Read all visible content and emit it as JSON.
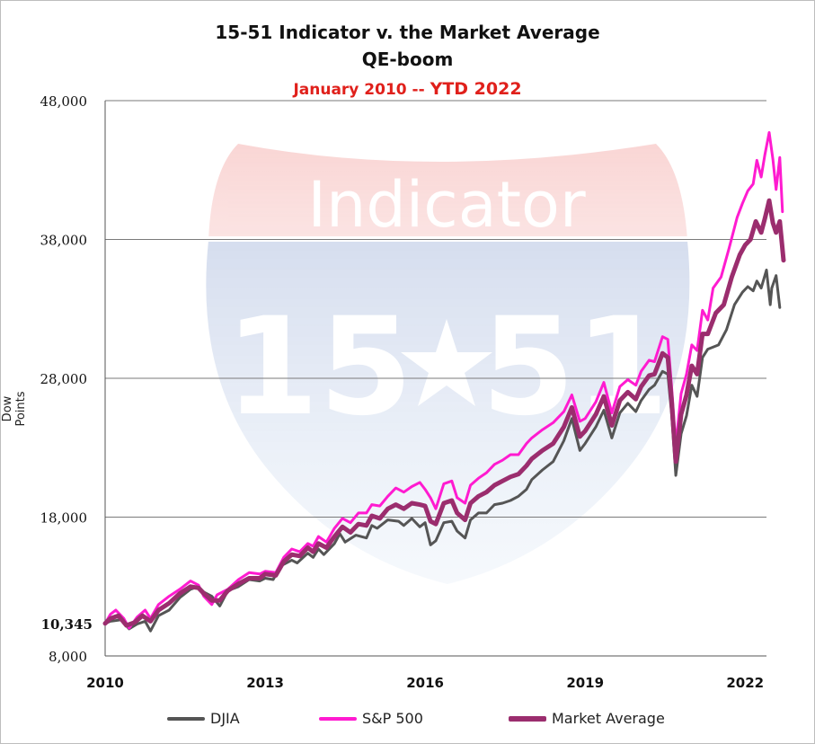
{
  "title": "15-51 Indicator v. the Market Average",
  "subtitle": "QE-boom",
  "period": "January 2010 --",
  "period_ytd": "YTD 2022",
  "watermark": {
    "text": "Indicator",
    "number_left": "15",
    "number_right": "51",
    "colors": {
      "top": "#e8534e",
      "bottom": "#3b5fb0"
    }
  },
  "chart_data": {
    "type": "line",
    "ylabel": "Dow Points",
    "ylim": [
      8000,
      48000
    ],
    "yticks": [
      8000,
      18000,
      28000,
      38000,
      48000
    ],
    "ytick_labels": [
      "8,000",
      "18,000",
      "28,000",
      "38,000",
      "48,000"
    ],
    "start_marker": {
      "value": 10345,
      "label": "10,345"
    },
    "xlim": [
      2010,
      2022.4
    ],
    "xticks": [
      2010,
      2013,
      2016,
      2019,
      2022
    ],
    "xtick_labels": [
      "2010",
      "2013",
      "2016",
      "2019",
      "2022"
    ],
    "grid": true,
    "legend_position": "bottom",
    "series": [
      {
        "name": "DJIA",
        "color": "#555555",
        "points": [
          [
            2010,
            10345
          ],
          [
            2010.1,
            10500
          ],
          [
            2010.3,
            10600
          ],
          [
            2010.45,
            9950
          ],
          [
            2010.6,
            10300
          ],
          [
            2010.75,
            10500
          ],
          [
            2010.85,
            9800
          ],
          [
            2011.0,
            10900
          ],
          [
            2011.2,
            11300
          ],
          [
            2011.4,
            12200
          ],
          [
            2011.6,
            12800
          ],
          [
            2011.75,
            13000
          ],
          [
            2011.85,
            12600
          ],
          [
            2012.0,
            12300
          ],
          [
            2012.15,
            11600
          ],
          [
            2012.3,
            12700
          ],
          [
            2012.5,
            13000
          ],
          [
            2012.7,
            13500
          ],
          [
            2012.9,
            13400
          ],
          [
            2013.0,
            13600
          ],
          [
            2013.15,
            13500
          ],
          [
            2013.3,
            14500
          ],
          [
            2013.5,
            14900
          ],
          [
            2013.6,
            14700
          ],
          [
            2013.8,
            15400
          ],
          [
            2013.9,
            15100
          ],
          [
            2014.0,
            15700
          ],
          [
            2014.1,
            15300
          ],
          [
            2014.3,
            16100
          ],
          [
            2014.4,
            16800
          ],
          [
            2014.5,
            16200
          ],
          [
            2014.7,
            16700
          ],
          [
            2014.9,
            16500
          ],
          [
            2015.0,
            17400
          ],
          [
            2015.1,
            17200
          ],
          [
            2015.3,
            17800
          ],
          [
            2015.5,
            17700
          ],
          [
            2015.6,
            17400
          ],
          [
            2015.75,
            17900
          ],
          [
            2015.9,
            17300
          ],
          [
            2016.0,
            17600
          ],
          [
            2016.1,
            16000
          ],
          [
            2016.2,
            16300
          ],
          [
            2016.35,
            17600
          ],
          [
            2016.5,
            17700
          ],
          [
            2016.6,
            17000
          ],
          [
            2016.75,
            16500
          ],
          [
            2016.85,
            17800
          ],
          [
            2017.0,
            18300
          ],
          [
            2017.15,
            18300
          ],
          [
            2017.3,
            18900
          ],
          [
            2017.45,
            19000
          ],
          [
            2017.6,
            19200
          ],
          [
            2017.75,
            19500
          ],
          [
            2017.9,
            20000
          ],
          [
            2018.0,
            20700
          ],
          [
            2018.2,
            21400
          ],
          [
            2018.4,
            22000
          ],
          [
            2018.6,
            23500
          ],
          [
            2018.75,
            25100
          ],
          [
            2018.9,
            22800
          ],
          [
            2019.0,
            23300
          ],
          [
            2019.2,
            24500
          ],
          [
            2019.35,
            25700
          ],
          [
            2019.5,
            23700
          ],
          [
            2019.65,
            25500
          ],
          [
            2019.8,
            26200
          ],
          [
            2019.95,
            25600
          ],
          [
            2020.05,
            26400
          ],
          [
            2020.2,
            27200
          ],
          [
            2020.3,
            27500
          ],
          [
            2020.45,
            28500
          ],
          [
            2020.55,
            28300
          ],
          [
            2020.62,
            25500
          ],
          [
            2020.7,
            21000
          ],
          [
            2020.8,
            24000
          ],
          [
            2020.9,
            25300
          ],
          [
            2021.0,
            27500
          ],
          [
            2021.1,
            26700
          ],
          [
            2021.2,
            29500
          ],
          [
            2021.3,
            30100
          ],
          [
            2021.5,
            30400
          ],
          [
            2021.65,
            31500
          ],
          [
            2021.8,
            33300
          ],
          [
            2021.95,
            34200
          ],
          [
            2022.05,
            34600
          ],
          [
            2022.15,
            34300
          ],
          [
            2022.22,
            35000
          ],
          [
            2022.3,
            34500
          ],
          [
            2022.4,
            35800
          ],
          [
            2022.47,
            33300
          ],
          [
            2022.5,
            34500
          ],
          [
            2022.58,
            35400
          ],
          [
            2022.65,
            33100
          ]
        ]
      },
      {
        "name": "S&P 500",
        "color": "#ff1bd0",
        "points": [
          [
            2010,
            10345
          ],
          [
            2010.1,
            11000
          ],
          [
            2010.2,
            11300
          ],
          [
            2010.35,
            10700
          ],
          [
            2010.45,
            10000
          ],
          [
            2010.6,
            10800
          ],
          [
            2010.75,
            11300
          ],
          [
            2010.85,
            10700
          ],
          [
            2011.0,
            11700
          ],
          [
            2011.2,
            12300
          ],
          [
            2011.4,
            12800
          ],
          [
            2011.6,
            13400
          ],
          [
            2011.75,
            13100
          ],
          [
            2011.85,
            12300
          ],
          [
            2012.0,
            11700
          ],
          [
            2012.1,
            12400
          ],
          [
            2012.3,
            12800
          ],
          [
            2012.5,
            13500
          ],
          [
            2012.7,
            14000
          ],
          [
            2012.9,
            13900
          ],
          [
            2013.0,
            14100
          ],
          [
            2013.2,
            14000
          ],
          [
            2013.35,
            15100
          ],
          [
            2013.5,
            15700
          ],
          [
            2013.65,
            15500
          ],
          [
            2013.8,
            16100
          ],
          [
            2013.9,
            15900
          ],
          [
            2014.0,
            16600
          ],
          [
            2014.15,
            16200
          ],
          [
            2014.3,
            17200
          ],
          [
            2014.45,
            17900
          ],
          [
            2014.6,
            17600
          ],
          [
            2014.75,
            18300
          ],
          [
            2014.9,
            18300
          ],
          [
            2015.0,
            18900
          ],
          [
            2015.15,
            18800
          ],
          [
            2015.3,
            19500
          ],
          [
            2015.45,
            20100
          ],
          [
            2015.6,
            19800
          ],
          [
            2015.75,
            20200
          ],
          [
            2015.9,
            20500
          ],
          [
            2016.0,
            20000
          ],
          [
            2016.1,
            19400
          ],
          [
            2016.2,
            18600
          ],
          [
            2016.35,
            20400
          ],
          [
            2016.5,
            20600
          ],
          [
            2016.6,
            19400
          ],
          [
            2016.75,
            19000
          ],
          [
            2016.85,
            20300
          ],
          [
            2017.0,
            20800
          ],
          [
            2017.15,
            21200
          ],
          [
            2017.3,
            21800
          ],
          [
            2017.45,
            22100
          ],
          [
            2017.6,
            22500
          ],
          [
            2017.75,
            22500
          ],
          [
            2017.9,
            23300
          ],
          [
            2018.0,
            23700
          ],
          [
            2018.2,
            24300
          ],
          [
            2018.4,
            24800
          ],
          [
            2018.6,
            25600
          ],
          [
            2018.75,
            26800
          ],
          [
            2018.9,
            24900
          ],
          [
            2019.0,
            25100
          ],
          [
            2019.2,
            26300
          ],
          [
            2019.35,
            27700
          ],
          [
            2019.5,
            25500
          ],
          [
            2019.65,
            27400
          ],
          [
            2019.8,
            27900
          ],
          [
            2019.95,
            27500
          ],
          [
            2020.05,
            28500
          ],
          [
            2020.2,
            29300
          ],
          [
            2020.3,
            29200
          ],
          [
            2020.45,
            31000
          ],
          [
            2020.55,
            30800
          ],
          [
            2020.62,
            27500
          ],
          [
            2020.7,
            23200
          ],
          [
            2020.8,
            26900
          ],
          [
            2020.9,
            28300
          ],
          [
            2021.0,
            30400
          ],
          [
            2021.1,
            30000
          ],
          [
            2021.2,
            32900
          ],
          [
            2021.3,
            32200
          ],
          [
            2021.4,
            34500
          ],
          [
            2021.55,
            35300
          ],
          [
            2021.7,
            37400
          ],
          [
            2021.85,
            39600
          ],
          [
            2021.95,
            40600
          ],
          [
            2022.05,
            41500
          ],
          [
            2022.15,
            42000
          ],
          [
            2022.22,
            43700
          ],
          [
            2022.3,
            42500
          ],
          [
            2022.37,
            44100
          ],
          [
            2022.45,
            45700
          ],
          [
            2022.52,
            43800
          ],
          [
            2022.58,
            41600
          ],
          [
            2022.65,
            43900
          ],
          [
            2022.7,
            40000
          ]
        ]
      },
      {
        "name": "Market Average",
        "color": "#9b2d6e",
        "points": [
          [
            2010,
            10345
          ],
          [
            2010.1,
            10700
          ],
          [
            2010.25,
            10900
          ],
          [
            2010.4,
            10200
          ],
          [
            2010.55,
            10400
          ],
          [
            2010.7,
            10900
          ],
          [
            2010.85,
            10500
          ],
          [
            2011.0,
            11300
          ],
          [
            2011.2,
            11800
          ],
          [
            2011.4,
            12500
          ],
          [
            2011.6,
            13000
          ],
          [
            2011.75,
            12900
          ],
          [
            2011.85,
            12500
          ],
          [
            2012.0,
            12000
          ],
          [
            2012.15,
            12000
          ],
          [
            2012.3,
            12700
          ],
          [
            2012.5,
            13200
          ],
          [
            2012.7,
            13600
          ],
          [
            2012.9,
            13600
          ],
          [
            2013.0,
            13900
          ],
          [
            2013.2,
            13800
          ],
          [
            2013.35,
            14800
          ],
          [
            2013.5,
            15300
          ],
          [
            2013.65,
            15200
          ],
          [
            2013.8,
            15800
          ],
          [
            2013.9,
            15500
          ],
          [
            2014.0,
            16100
          ],
          [
            2014.15,
            15800
          ],
          [
            2014.3,
            16600
          ],
          [
            2014.45,
            17300
          ],
          [
            2014.6,
            16900
          ],
          [
            2014.75,
            17500
          ],
          [
            2014.9,
            17400
          ],
          [
            2015.0,
            18100
          ],
          [
            2015.15,
            17900
          ],
          [
            2015.3,
            18600
          ],
          [
            2015.45,
            18900
          ],
          [
            2015.6,
            18600
          ],
          [
            2015.75,
            19000
          ],
          [
            2015.9,
            18900
          ],
          [
            2016.0,
            18800
          ],
          [
            2016.1,
            17700
          ],
          [
            2016.2,
            17500
          ],
          [
            2016.35,
            19000
          ],
          [
            2016.5,
            19200
          ],
          [
            2016.6,
            18300
          ],
          [
            2016.75,
            17800
          ],
          [
            2016.85,
            19000
          ],
          [
            2017.0,
            19500
          ],
          [
            2017.15,
            19800
          ],
          [
            2017.3,
            20300
          ],
          [
            2017.45,
            20600
          ],
          [
            2017.6,
            20900
          ],
          [
            2017.75,
            21100
          ],
          [
            2017.9,
            21700
          ],
          [
            2018.0,
            22200
          ],
          [
            2018.2,
            22800
          ],
          [
            2018.4,
            23300
          ],
          [
            2018.6,
            24500
          ],
          [
            2018.75,
            25900
          ],
          [
            2018.9,
            23800
          ],
          [
            2019.0,
            24200
          ],
          [
            2019.2,
            25400
          ],
          [
            2019.35,
            26700
          ],
          [
            2019.5,
            24600
          ],
          [
            2019.65,
            26400
          ],
          [
            2019.8,
            27000
          ],
          [
            2019.95,
            26500
          ],
          [
            2020.05,
            27400
          ],
          [
            2020.2,
            28200
          ],
          [
            2020.3,
            28300
          ],
          [
            2020.45,
            29800
          ],
          [
            2020.55,
            29500
          ],
          [
            2020.62,
            26500
          ],
          [
            2020.7,
            22000
          ],
          [
            2020.8,
            25400
          ],
          [
            2020.9,
            26800
          ],
          [
            2021.0,
            28900
          ],
          [
            2021.1,
            28300
          ],
          [
            2021.2,
            31200
          ],
          [
            2021.3,
            31200
          ],
          [
            2021.45,
            32700
          ],
          [
            2021.6,
            33300
          ],
          [
            2021.75,
            35300
          ],
          [
            2021.9,
            36900
          ],
          [
            2022.0,
            37600
          ],
          [
            2022.1,
            38000
          ],
          [
            2022.2,
            39300
          ],
          [
            2022.3,
            38500
          ],
          [
            2022.37,
            39500
          ],
          [
            2022.45,
            40800
          ],
          [
            2022.52,
            39200
          ],
          [
            2022.58,
            38500
          ],
          [
            2022.65,
            39300
          ],
          [
            2022.72,
            36500
          ]
        ]
      }
    ]
  }
}
